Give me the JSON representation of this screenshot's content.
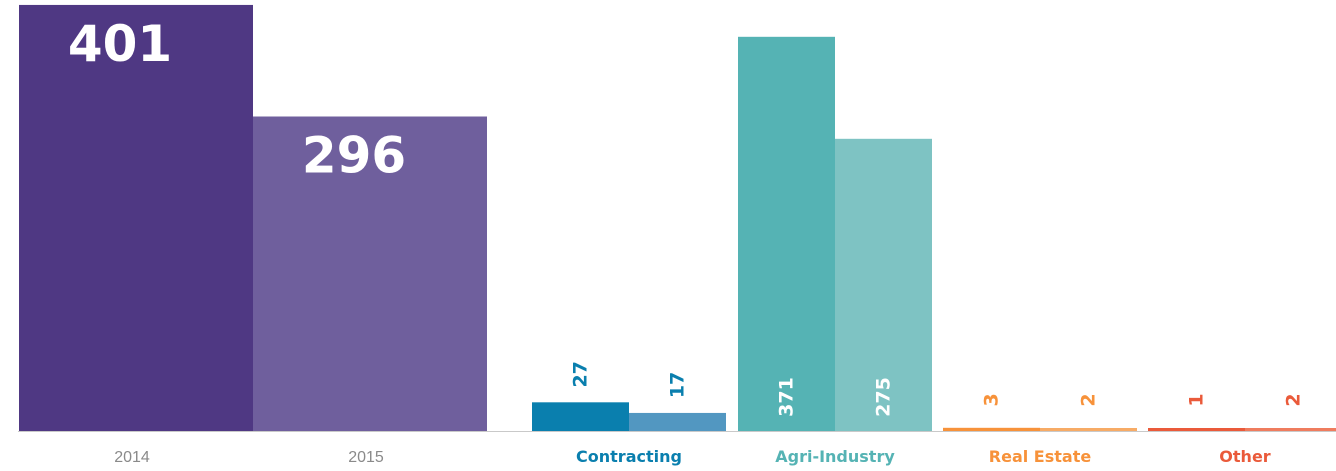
{
  "chart_data": [
    {
      "type": "bar",
      "title": "",
      "categories": [
        "2014",
        "2015"
      ],
      "values": [
        401,
        296
      ],
      "colors": [
        "#4f3883",
        "#6f5f9d"
      ]
    },
    {
      "type": "bar",
      "title": "",
      "categories": [
        "Contracting",
        "Agri-Industry",
        "Real Estate",
        "Other"
      ],
      "category_colors": [
        "#0a7fae",
        "#55b3b4",
        "#f7923a",
        "#ea5a3a"
      ],
      "series": [
        {
          "name": "2014",
          "values": [
            27,
            371,
            3,
            1
          ]
        },
        {
          "name": "2015",
          "values": [
            17,
            275,
            2,
            2
          ]
        }
      ],
      "series_colors": [
        [
          "#0a7fae",
          "#5297c1"
        ],
        [
          "#55b3b4",
          "#7ec3c3"
        ],
        [
          "#f7923a",
          "#f7ab66"
        ],
        [
          "#ea5a3a",
          "#ef7c5e"
        ]
      ]
    }
  ]
}
